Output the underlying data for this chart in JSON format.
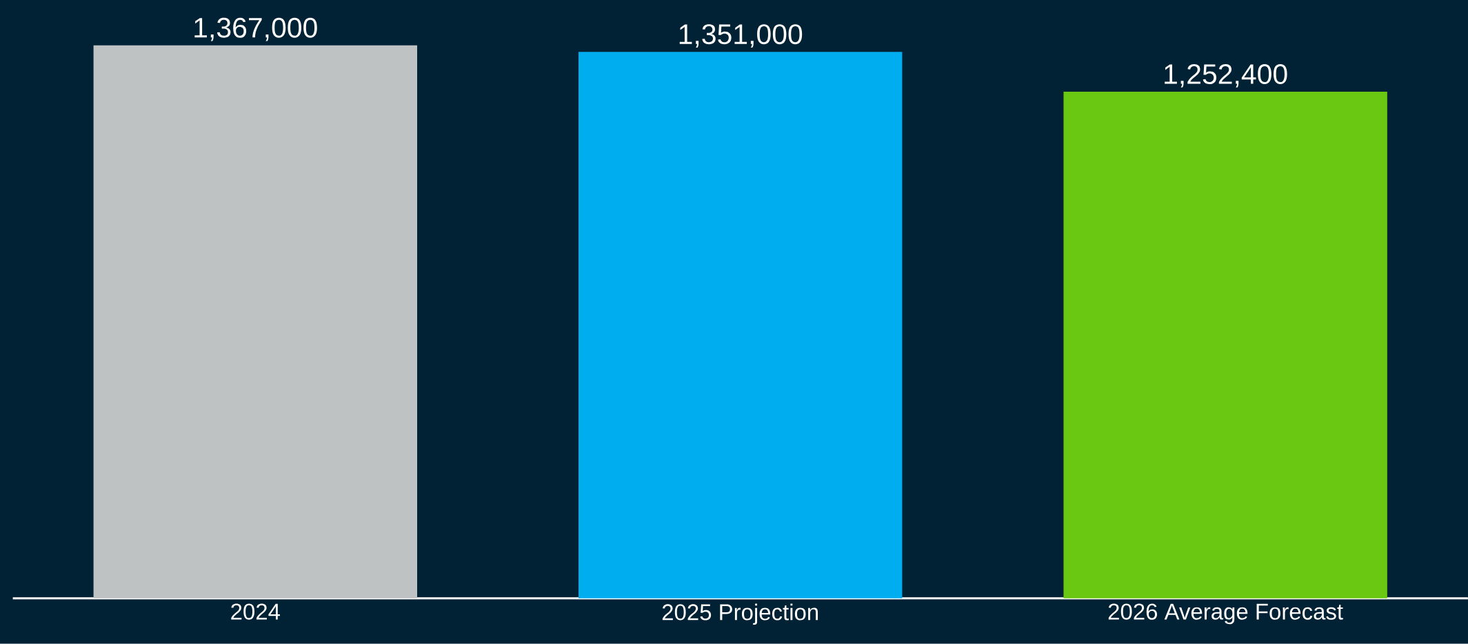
{
  "chart_data": {
    "type": "bar",
    "categories": [
      "2024",
      "2025 Projection",
      "2026 Average Forecast"
    ],
    "values": [
      1367000,
      1351000,
      1252400
    ],
    "value_labels": [
      "1,367,000",
      "1,351,000",
      "1,252,400"
    ],
    "colors": [
      "#bfc2c3",
      "#00aeef",
      "#6bc812"
    ]
  }
}
